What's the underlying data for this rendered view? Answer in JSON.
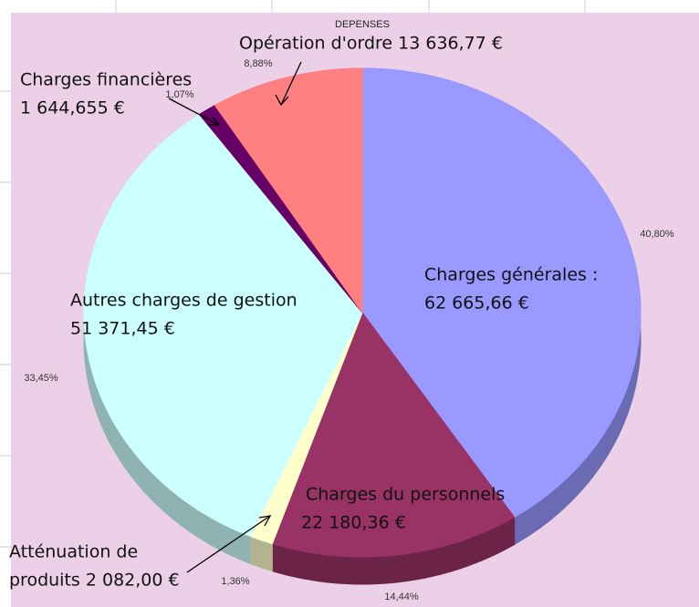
{
  "chart_data": {
    "type": "pie",
    "title": "DEPENSES",
    "categories": [
      "Charges générales",
      "Charges du personnels",
      "Atténuation de produits",
      "Autres charges de gestion",
      "Charges financières",
      "Opération d'ordre"
    ],
    "values": [
      40.8,
      14.44,
      1.36,
      33.45,
      1.07,
      8.88
    ],
    "value_labels": [
      "40,80%",
      "14,44%",
      "1,36%",
      "33,45%",
      "1,07%",
      "8,88%"
    ],
    "colors": [
      "#9999ff",
      "#993366",
      "#ffffcc",
      "#ccffff",
      "#660066",
      "#ff8080"
    ],
    "annotations": [
      [
        "Charges générales :",
        "62 665,66 €"
      ],
      [
        "Charges du personnels",
        "22 180,36 €"
      ],
      [
        "Atténuation de",
        "produits 2 082,00 €"
      ],
      [
        "Autres charges de gestion",
        "51 371,45 €"
      ],
      [
        "Charges financières",
        "1 644,655 €"
      ],
      [
        "Opération d'ordre 13 636,77 €"
      ]
    ]
  }
}
